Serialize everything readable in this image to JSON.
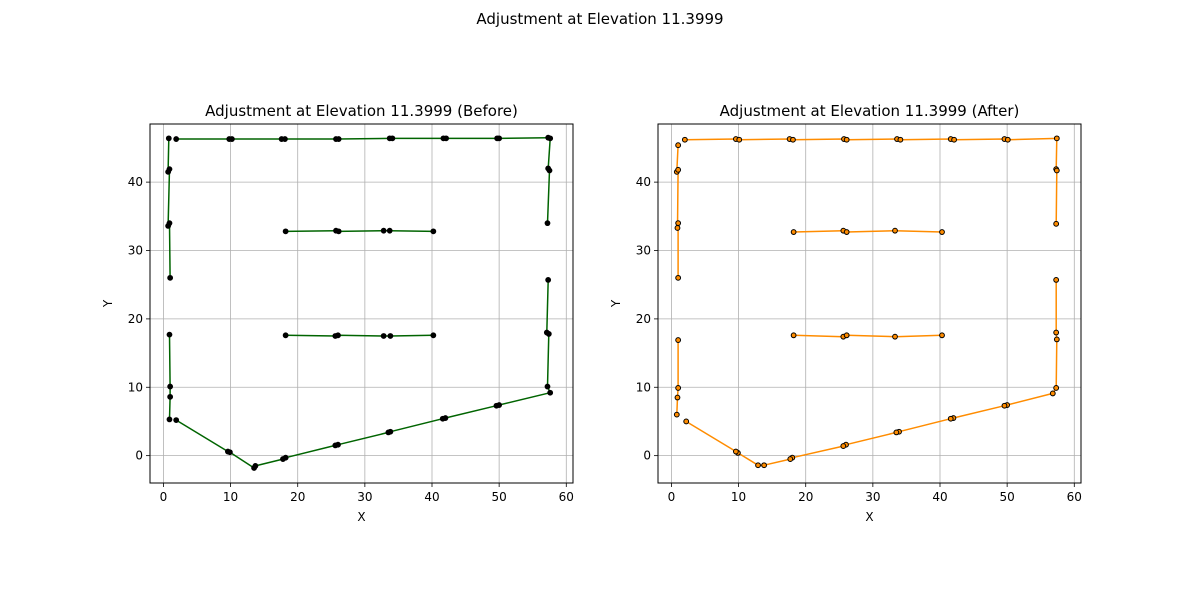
{
  "figure": {
    "suptitle": "Adjustment at Elevation 11.3999"
  },
  "chart_data": [
    {
      "type": "line",
      "title": "Adjustment at Elevation 11.3999 (Before)",
      "xlabel": "X",
      "ylabel": "Y",
      "xlim": [
        -2,
        61
      ],
      "ylim": [
        -4,
        48.5
      ],
      "xticks": [
        0,
        10,
        20,
        30,
        40,
        50,
        60
      ],
      "yticks": [
        0,
        10,
        20,
        30,
        40
      ],
      "grid": true,
      "line_color": "#006400",
      "marker_color": "#000000",
      "series": [
        {
          "points": [
            [
              0.8,
              46.4
            ],
            [
              0.7,
              41.5
            ],
            [
              0.9,
              41.9
            ],
            [
              0.7,
              33.6
            ],
            [
              0.9,
              34.0
            ],
            [
              1.0,
              26.0
            ]
          ]
        },
        {
          "points": [
            [
              1.9,
              46.3
            ],
            [
              9.8,
              46.3
            ],
            [
              10.2,
              46.3
            ],
            [
              17.6,
              46.3
            ],
            [
              18.1,
              46.3
            ],
            [
              25.7,
              46.3
            ],
            [
              26.1,
              46.3
            ],
            [
              33.7,
              46.4
            ],
            [
              34.1,
              46.4
            ],
            [
              41.7,
              46.4
            ],
            [
              42.1,
              46.4
            ],
            [
              49.7,
              46.4
            ],
            [
              50.0,
              46.4
            ],
            [
              57.3,
              46.5
            ],
            [
              57.6,
              46.4
            ],
            [
              57.3,
              42.0
            ],
            [
              57.5,
              41.7
            ],
            [
              57.2,
              34.0
            ]
          ]
        },
        {
          "points": [
            [
              18.2,
              32.8
            ],
            [
              25.7,
              32.9
            ],
            [
              26.1,
              32.8
            ],
            [
              32.8,
              32.9
            ],
            [
              33.7,
              32.9
            ],
            [
              40.2,
              32.8
            ]
          ]
        },
        {
          "points": [
            [
              18.2,
              17.6
            ],
            [
              25.6,
              17.5
            ],
            [
              26.0,
              17.6
            ],
            [
              32.8,
              17.5
            ],
            [
              33.8,
              17.5
            ],
            [
              40.2,
              17.6
            ]
          ]
        },
        {
          "points": [
            [
              57.3,
              25.7
            ],
            [
              57.1,
              18.0
            ],
            [
              57.4,
              17.8
            ],
            [
              57.2,
              10.1
            ],
            [
              57.6,
              9.2
            ],
            [
              50.0,
              7.4
            ],
            [
              49.6,
              7.3
            ],
            [
              42.0,
              5.5
            ],
            [
              41.6,
              5.4
            ],
            [
              33.8,
              3.5
            ],
            [
              33.5,
              3.4
            ],
            [
              26.0,
              1.6
            ],
            [
              25.6,
              1.5
            ],
            [
              18.2,
              -0.3
            ],
            [
              17.8,
              -0.5
            ],
            [
              13.7,
              -1.5
            ],
            [
              13.5,
              -1.8
            ],
            [
              9.9,
              0.5
            ],
            [
              9.6,
              0.6
            ],
            [
              1.9,
              5.2
            ]
          ]
        },
        {
          "points": [
            [
              0.9,
              17.7
            ],
            [
              1.0,
              10.1
            ],
            [
              1.0,
              8.6
            ],
            [
              0.9,
              5.3
            ]
          ]
        }
      ]
    },
    {
      "type": "line",
      "title": "Adjustment at Elevation 11.3999 (After)",
      "xlabel": "X",
      "ylabel": "Y",
      "xlim": [
        -2,
        61
      ],
      "ylim": [
        -4,
        48.5
      ],
      "xticks": [
        0,
        10,
        20,
        30,
        40,
        50,
        60
      ],
      "yticks": [
        0,
        10,
        20,
        30,
        40
      ],
      "grid": true,
      "line_color": "#FF8C00",
      "marker_color": "#FF8C00",
      "series": [
        {
          "points": [
            [
              1.0,
              45.4
            ],
            [
              0.8,
              41.5
            ],
            [
              1.0,
              41.8
            ],
            [
              0.9,
              33.3
            ],
            [
              1.0,
              34.0
            ],
            [
              1.0,
              26.0
            ]
          ]
        },
        {
          "points": [
            [
              2.0,
              46.2
            ],
            [
              9.6,
              46.3
            ],
            [
              10.1,
              46.2
            ],
            [
              17.6,
              46.3
            ],
            [
              18.1,
              46.2
            ],
            [
              25.7,
              46.3
            ],
            [
              26.1,
              46.2
            ],
            [
              33.6,
              46.3
            ],
            [
              34.1,
              46.2
            ],
            [
              41.6,
              46.3
            ],
            [
              42.1,
              46.2
            ],
            [
              49.6,
              46.3
            ],
            [
              50.1,
              46.2
            ],
            [
              57.4,
              46.4
            ],
            [
              57.3,
              41.9
            ],
            [
              57.4,
              41.7
            ],
            [
              57.3,
              33.9
            ]
          ]
        },
        {
          "points": [
            [
              18.2,
              32.7
            ],
            [
              25.6,
              32.9
            ],
            [
              26.1,
              32.7
            ],
            [
              33.3,
              32.9
            ],
            [
              40.3,
              32.7
            ]
          ]
        },
        {
          "points": [
            [
              18.2,
              17.6
            ],
            [
              25.6,
              17.4
            ],
            [
              26.1,
              17.6
            ],
            [
              33.3,
              17.4
            ],
            [
              40.3,
              17.6
            ]
          ]
        },
        {
          "points": [
            [
              57.3,
              25.7
            ],
            [
              57.3,
              18.0
            ],
            [
              57.4,
              17.0
            ],
            [
              57.3,
              9.9
            ],
            [
              56.8,
              9.1
            ],
            [
              50.0,
              7.4
            ],
            [
              49.6,
              7.3
            ],
            [
              42.0,
              5.5
            ],
            [
              41.6,
              5.4
            ],
            [
              33.9,
              3.5
            ],
            [
              33.5,
              3.4
            ],
            [
              26.0,
              1.6
            ],
            [
              25.6,
              1.4
            ],
            [
              18.0,
              -0.3
            ],
            [
              17.7,
              -0.5
            ],
            [
              13.8,
              -1.4
            ],
            [
              12.9,
              -1.4
            ],
            [
              9.9,
              0.4
            ],
            [
              9.6,
              0.6
            ],
            [
              2.2,
              5.0
            ]
          ]
        },
        {
          "points": [
            [
              1.0,
              16.9
            ],
            [
              1.0,
              9.9
            ],
            [
              0.9,
              8.5
            ],
            [
              0.8,
              6.0
            ]
          ]
        }
      ]
    }
  ]
}
